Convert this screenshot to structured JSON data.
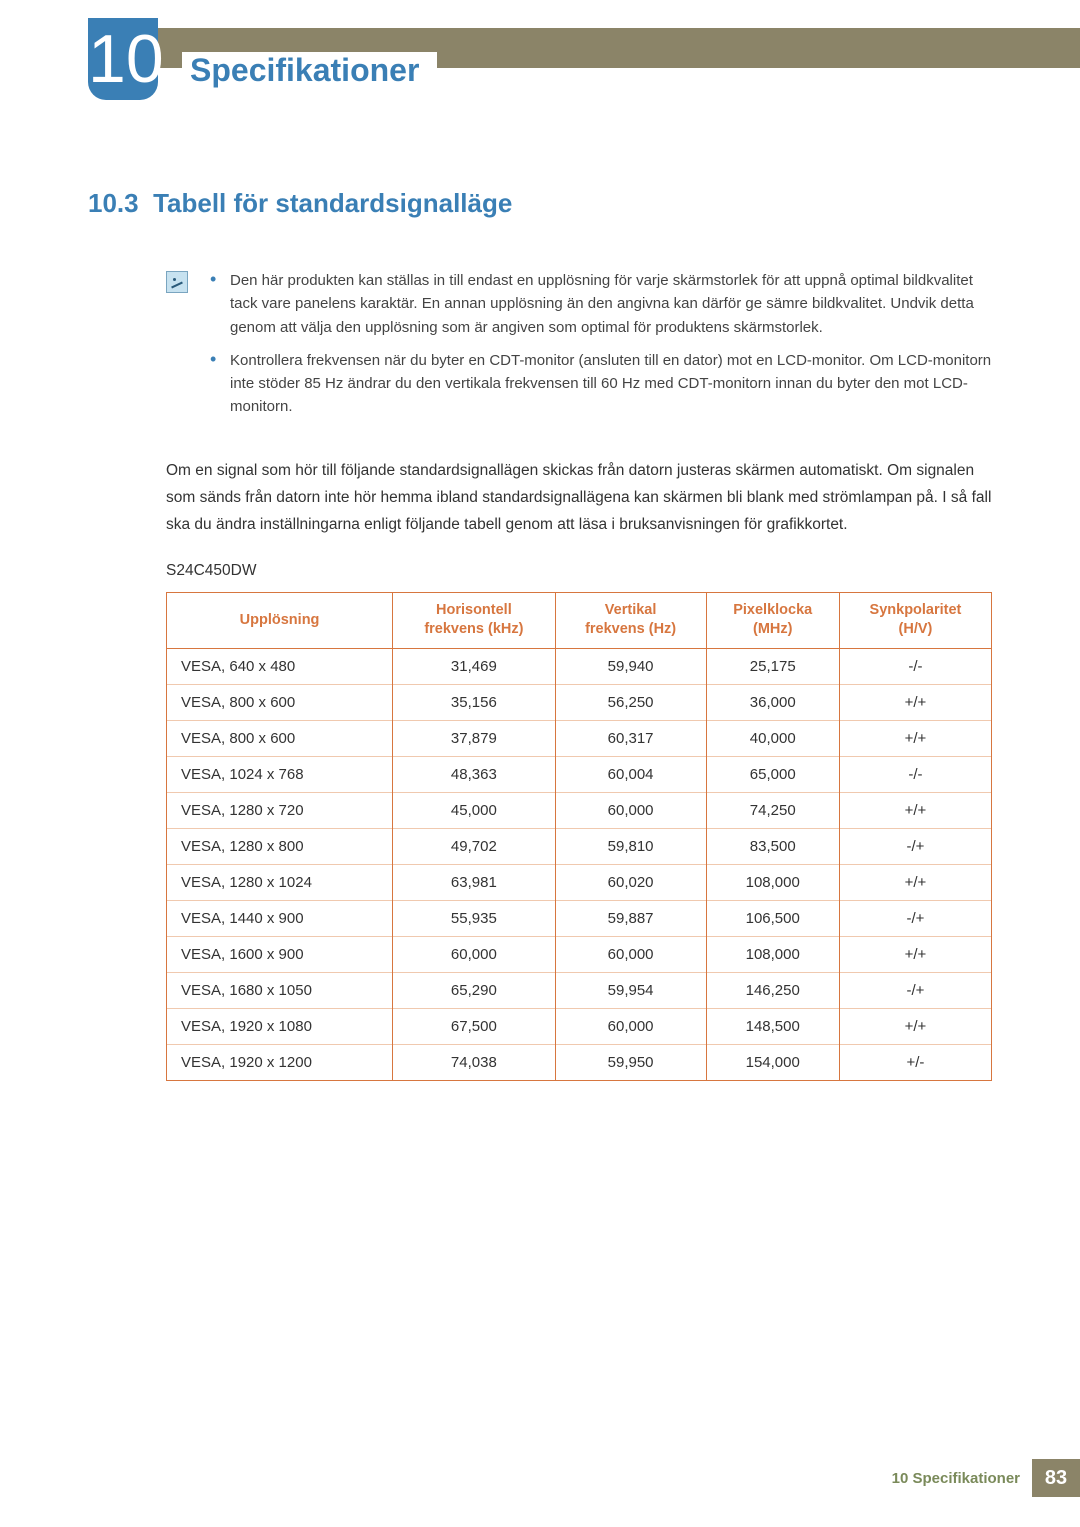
{
  "chapter": {
    "number": "10",
    "title": "Specifikationer"
  },
  "section": {
    "number": "10.3",
    "title": "Tabell för standardsignalläge"
  },
  "notes": [
    "Den här produkten kan ställas in till endast en upplösning för varje skärmstorlek för att uppnå optimal bildkvalitet tack vare panelens karaktär. En annan upplösning än den angivna kan därför ge sämre bildkvalitet. Undvik detta genom att välja den upplösning som är angiven som optimal för produktens skärmstorlek.",
    "Kontrollera frekvensen när du byter en CDT-monitor (ansluten till en dator) mot en LCD-monitor. Om LCD-monitorn inte stöder 85 Hz ändrar du den vertikala frekvensen till 60 Hz med CDT-monitorn innan du byter den mot LCD-monitorn."
  ],
  "body_paragraph": "Om en signal som hör till följande standardsignallägen skickas från datorn justeras skärmen automatiskt. Om signalen som sänds från datorn inte hör hemma ibland standardsignallägena kan skärmen bli blank med strömlampan på. I så fall ska du ändra inställningarna enligt följande tabell genom att läsa i bruksanvisningen för grafikkortet.",
  "model": "S24C450DW",
  "table": {
    "type": "table",
    "border_color": "#d7763f",
    "row_divider_color": "#f0c9af",
    "header_text_color": "#d7763f",
    "header_fontsize": 14.5,
    "cell_fontsize": 15,
    "columns": [
      {
        "line1": "Upplösning",
        "line2": "",
        "align": "left"
      },
      {
        "line1": "Horisontell",
        "line2": "frekvens (kHz)",
        "align": "center"
      },
      {
        "line1": "Vertikal",
        "line2": "frekvens (Hz)",
        "align": "center"
      },
      {
        "line1": "Pixelklocka",
        "line2": "(MHz)",
        "align": "center"
      },
      {
        "line1": "Synkpolaritet",
        "line2": "(H/V)",
        "align": "center"
      }
    ],
    "rows": [
      [
        "VESA, 640 x 480",
        "31,469",
        "59,940",
        "25,175",
        "-/-"
      ],
      [
        "VESA, 800 x 600",
        "35,156",
        "56,250",
        "36,000",
        "+/+"
      ],
      [
        "VESA, 800 x 600",
        "37,879",
        "60,317",
        "40,000",
        "+/+"
      ],
      [
        "VESA, 1024 x 768",
        "48,363",
        "60,004",
        "65,000",
        "-/-"
      ],
      [
        "VESA, 1280 x 720",
        "45,000",
        "60,000",
        "74,250",
        "+/+"
      ],
      [
        "VESA, 1280 x 800",
        "49,702",
        "59,810",
        "83,500",
        "-/+"
      ],
      [
        "VESA, 1280 x 1024",
        "63,981",
        "60,020",
        "108,000",
        "+/+"
      ],
      [
        "VESA, 1440 x 900",
        "55,935",
        "59,887",
        "106,500",
        "-/+"
      ],
      [
        "VESA, 1600 x 900",
        "60,000",
        "60,000",
        "108,000",
        "+/+"
      ],
      [
        "VESA, 1680 x 1050",
        "65,290",
        "59,954",
        "146,250",
        "-/+"
      ],
      [
        "VESA, 1920 x 1080",
        "67,500",
        "60,000",
        "148,500",
        "+/+"
      ],
      [
        "VESA, 1920 x 1200",
        "74,038",
        "59,950",
        "154,000",
        "+/-"
      ]
    ]
  },
  "footer": {
    "text": "10 Specifikationer",
    "page": "83"
  },
  "colors": {
    "accent_blue": "#3a7fb5",
    "header_bar": "#8b8468",
    "table_border": "#d7763f",
    "footer_text": "#7a8a5a"
  }
}
